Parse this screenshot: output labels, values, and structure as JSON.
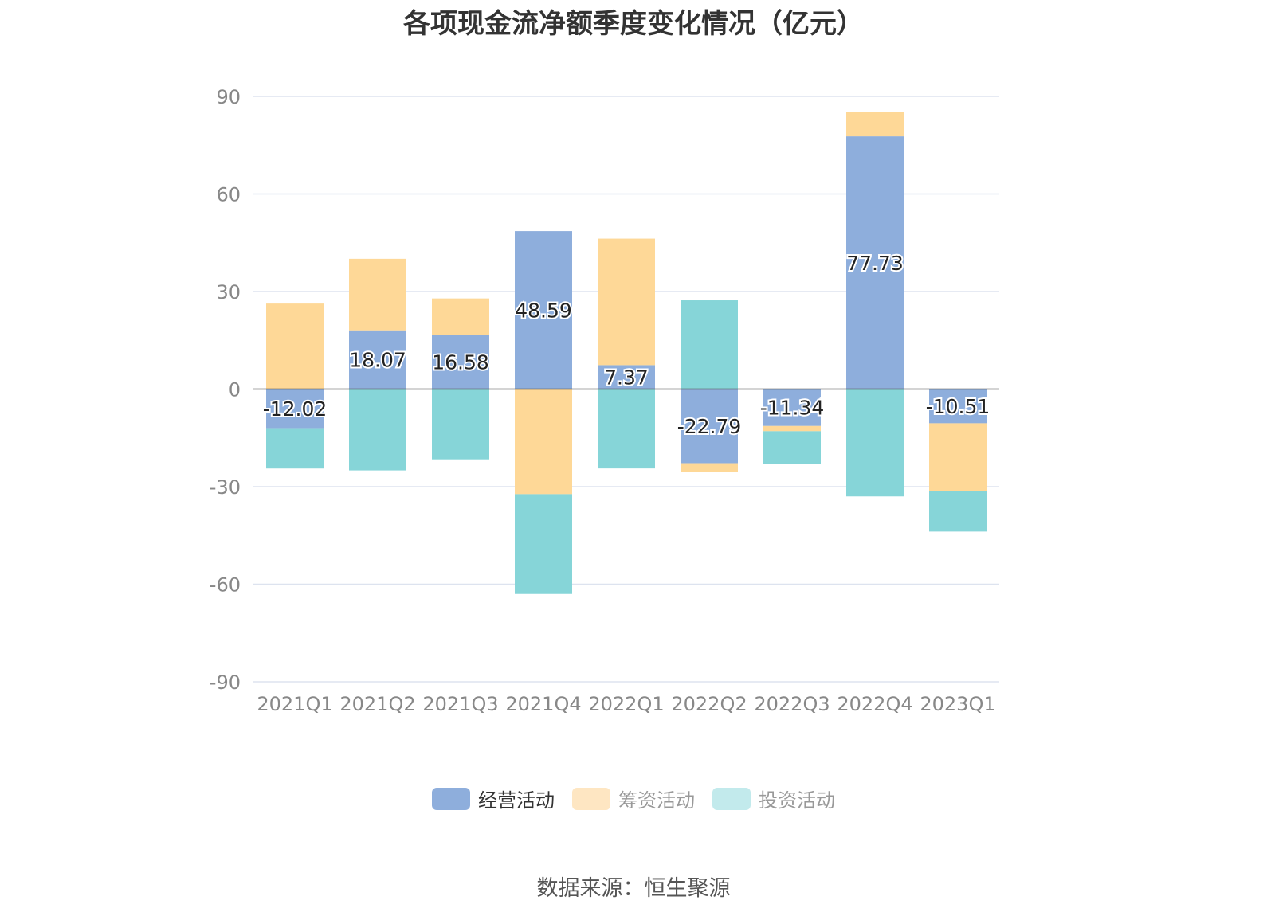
{
  "title": "各项现金流净额季度变化情况（亿元）",
  "source": "数据来源：恒生聚源",
  "chart_data": {
    "type": "bar",
    "stacked": true,
    "categories": [
      "2021Q1",
      "2021Q2",
      "2021Q3",
      "2021Q4",
      "2022Q1",
      "2022Q2",
      "2022Q3",
      "2022Q4",
      "2023Q1"
    ],
    "y_ticks": [
      "90",
      "60",
      "30",
      "0",
      "-30",
      "-60",
      "-90"
    ],
    "ylim": [
      -90,
      90
    ],
    "grid": true,
    "legend_position": "bottom",
    "series": [
      {
        "name": "经营活动",
        "color": "#8eaedc",
        "labeled": true,
        "values": [
          -12.02,
          18.07,
          16.58,
          48.59,
          7.37,
          -22.79,
          -11.34,
          77.73,
          -10.51
        ]
      },
      {
        "name": "筹资活动",
        "color": "#fed897",
        "labeled": false,
        "values": [
          26.3,
          22.0,
          11.3,
          -32.3,
          38.9,
          -2.8,
          -1.6,
          7.5,
          -20.8
        ]
      },
      {
        "name": "投资活动",
        "color": "#86d5d8",
        "labeled": false,
        "values": [
          -12.4,
          -25.0,
          -21.6,
          -30.7,
          -24.4,
          27.3,
          -10.0,
          -33.0,
          -12.5
        ]
      }
    ],
    "data_labels": [
      "-12.02",
      "18.07",
      "16.58",
      "48.59",
      "7.37",
      "-22.79",
      "-11.34",
      "77.73",
      "-10.51"
    ]
  },
  "legend": [
    {
      "label": "经营活动",
      "color": "#8eaedc",
      "text_color": "#333333"
    },
    {
      "label": "筹资活动",
      "color": "#fee6c2",
      "text_color": "#999999"
    },
    {
      "label": "投资活动",
      "color": "#c2eaec",
      "text_color": "#999999"
    }
  ]
}
